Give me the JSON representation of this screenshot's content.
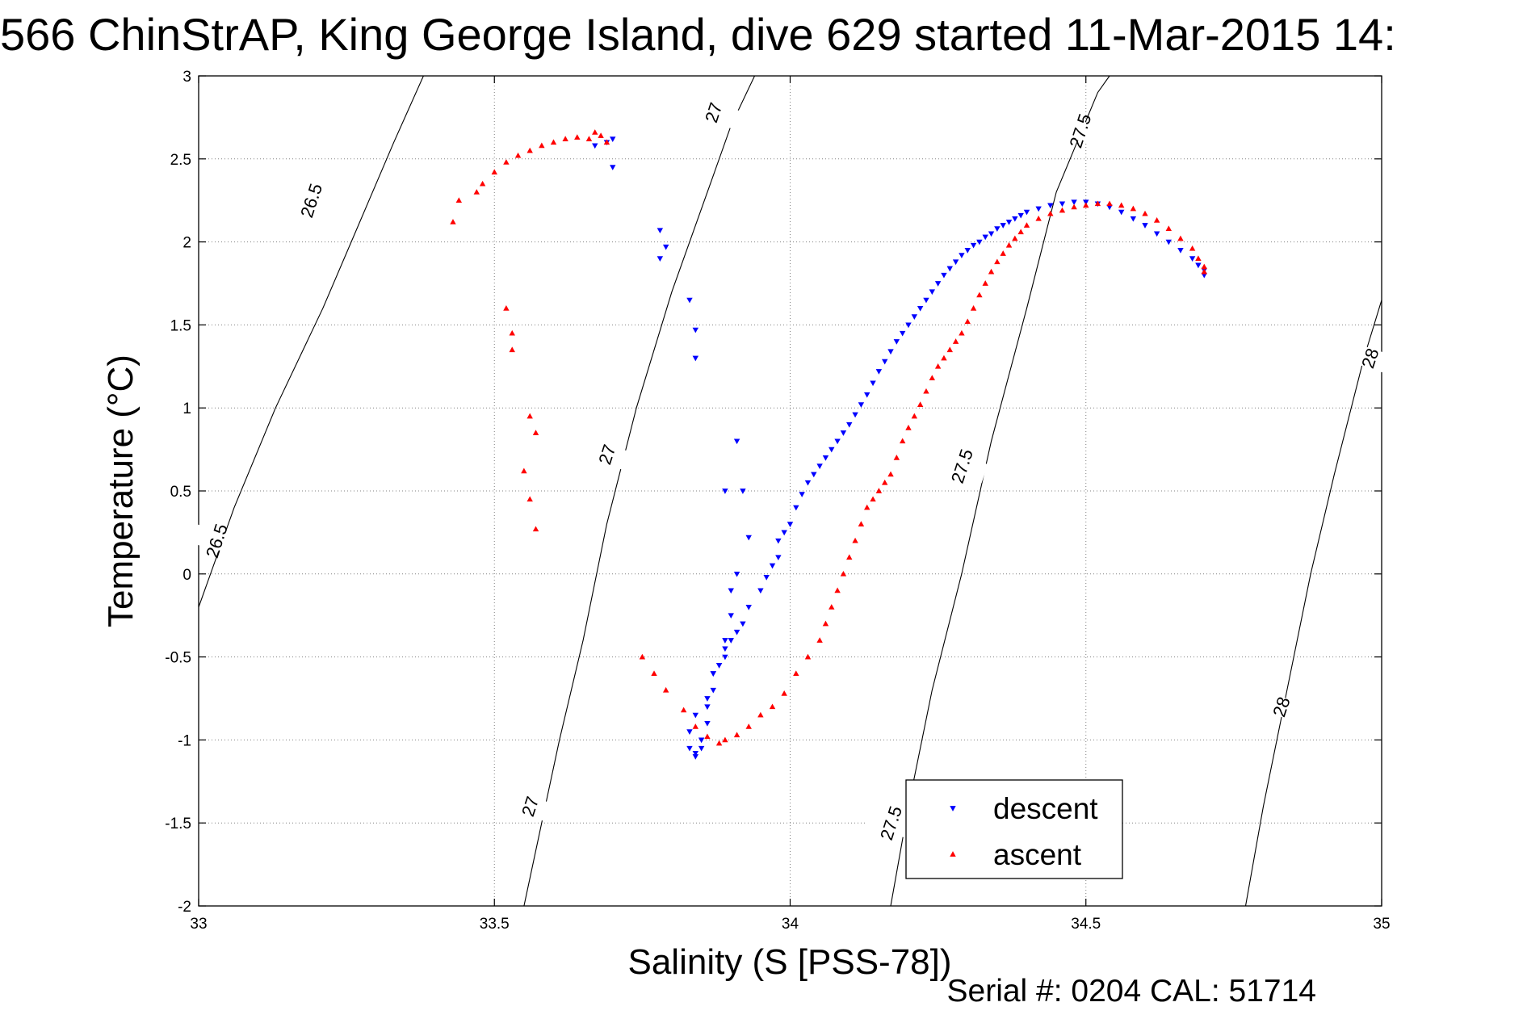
{
  "chart_data": {
    "type": "scatter",
    "title": "566 ChinStrAP, King George Island, dive 629 started 11-Mar-2015 14:",
    "xlabel": "Salinity (S [PSS-78])",
    "ylabel": "Temperature (°C)",
    "footer": "Serial #: 0204  CAL: 51714",
    "xlim": [
      33,
      35
    ],
    "ylim": [
      -2,
      3
    ],
    "xticks": [
      33,
      33.5,
      34,
      34.5,
      35
    ],
    "xtick_labels": [
      "33",
      "33.5",
      "34",
      "34.5",
      "35"
    ],
    "yticks": [
      -2,
      -1.5,
      -1,
      -0.5,
      0,
      0.5,
      1,
      1.5,
      2,
      2.5,
      3
    ],
    "ytick_labels": [
      "-2",
      "-1.5",
      "-1",
      "-0.5",
      "0",
      "0.5",
      "1",
      "1.5",
      "2",
      "2.5",
      "3"
    ],
    "grid": true,
    "legend_position": "bottom-right",
    "contours": [
      {
        "label": "26.5",
        "points": [
          [
            33.0,
            -0.2
          ],
          [
            33.06,
            0.4
          ],
          [
            33.13,
            1.0
          ],
          [
            33.21,
            1.6
          ],
          [
            33.27,
            2.1
          ],
          [
            33.33,
            2.6
          ],
          [
            33.38,
            3.0
          ]
        ],
        "label_positions": [
          [
            33.19,
            2.25
          ],
          [
            33.03,
            0.2
          ]
        ]
      },
      {
        "label": "27",
        "points": [
          [
            33.55,
            -2.0
          ],
          [
            33.58,
            -1.5
          ],
          [
            33.61,
            -1.0
          ],
          [
            33.65,
            -0.4
          ],
          [
            33.69,
            0.3
          ],
          [
            33.74,
            1.0
          ],
          [
            33.8,
            1.7
          ],
          [
            33.87,
            2.4
          ],
          [
            33.9,
            2.7
          ],
          [
            33.94,
            3.0
          ]
        ],
        "label_positions": [
          [
            33.87,
            2.78
          ],
          [
            33.69,
            0.72
          ],
          [
            33.56,
            -1.4
          ]
        ]
      },
      {
        "label": "27.5",
        "points": [
          [
            34.17,
            -2.0
          ],
          [
            34.2,
            -1.4
          ],
          [
            34.24,
            -0.7
          ],
          [
            34.29,
            0.0
          ],
          [
            34.34,
            0.8
          ],
          [
            34.4,
            1.6
          ],
          [
            34.45,
            2.3
          ],
          [
            34.52,
            2.9
          ],
          [
            34.54,
            3.0
          ]
        ],
        "label_positions": [
          [
            34.49,
            2.67
          ],
          [
            34.29,
            0.65
          ],
          [
            34.17,
            -1.5
          ]
        ]
      },
      {
        "label": "28",
        "points": [
          [
            34.77,
            -2.0
          ],
          [
            34.8,
            -1.4
          ],
          [
            34.84,
            -0.7
          ],
          [
            34.88,
            0.0
          ],
          [
            34.92,
            0.6
          ],
          [
            34.97,
            1.3
          ],
          [
            35.0,
            1.65
          ]
        ],
        "label_positions": [
          [
            34.98,
            1.3
          ],
          [
            34.83,
            -0.8
          ]
        ]
      }
    ],
    "series": [
      {
        "name": "descent",
        "color": "#0000ff",
        "marker": "triangle-down",
        "x": [
          33.7,
          33.69,
          33.67,
          33.7,
          33.78,
          33.79,
          33.78,
          33.83,
          33.84,
          33.84,
          33.91,
          33.92,
          33.89,
          33.93,
          33.91,
          33.9,
          33.9,
          33.89,
          33.88,
          33.87,
          33.87,
          33.86,
          33.86,
          33.85,
          33.85,
          33.84,
          33.84,
          33.83,
          33.83,
          33.84,
          33.86,
          33.87,
          33.88,
          33.89,
          33.89,
          33.9,
          33.91,
          33.92,
          33.93,
          33.95,
          33.96,
          33.97,
          33.98,
          33.98,
          33.99,
          34.0,
          34.01,
          34.02,
          34.03,
          34.04,
          34.05,
          34.06,
          34.07,
          34.08,
          34.09,
          34.1,
          34.11,
          34.12,
          34.13,
          34.14,
          34.15,
          34.16,
          34.17,
          34.18,
          34.19,
          34.2,
          34.21,
          34.22,
          34.23,
          34.24,
          34.25,
          34.26,
          34.27,
          34.28,
          34.29,
          34.3,
          34.31,
          34.32,
          34.33,
          34.34,
          34.35,
          34.36,
          34.37,
          34.38,
          34.39,
          34.4,
          34.42,
          34.44,
          34.46,
          34.48,
          34.5,
          34.52,
          34.54,
          34.56,
          34.58,
          34.6,
          34.62,
          34.64,
          34.66,
          34.68,
          34.69,
          34.7,
          34.7
        ],
        "y": [
          2.62,
          2.6,
          2.58,
          2.45,
          2.07,
          1.97,
          1.9,
          1.65,
          1.47,
          1.3,
          0.8,
          0.5,
          0.5,
          0.22,
          0.0,
          -0.1,
          -0.25,
          -0.4,
          -0.55,
          -0.6,
          -0.7,
          -0.8,
          -0.9,
          -1.0,
          -1.05,
          -1.08,
          -1.1,
          -1.05,
          -0.95,
          -0.85,
          -0.75,
          -0.6,
          -0.55,
          -0.5,
          -0.45,
          -0.4,
          -0.35,
          -0.3,
          -0.2,
          -0.1,
          -0.02,
          0.05,
          0.1,
          0.2,
          0.25,
          0.3,
          0.4,
          0.48,
          0.55,
          0.6,
          0.65,
          0.7,
          0.75,
          0.8,
          0.85,
          0.9,
          0.96,
          1.02,
          1.08,
          1.15,
          1.22,
          1.28,
          1.34,
          1.4,
          1.45,
          1.5,
          1.55,
          1.6,
          1.65,
          1.7,
          1.75,
          1.8,
          1.84,
          1.88,
          1.92,
          1.95,
          1.98,
          2.0,
          2.03,
          2.05,
          2.08,
          2.1,
          2.12,
          2.14,
          2.16,
          2.18,
          2.2,
          2.22,
          2.23,
          2.24,
          2.24,
          2.23,
          2.21,
          2.18,
          2.14,
          2.1,
          2.05,
          2.0,
          1.95,
          1.9,
          1.86,
          1.83,
          1.8
        ]
      },
      {
        "name": "ascent",
        "color": "#ff0000",
        "marker": "triangle-up",
        "x": [
          33.43,
          33.44,
          33.47,
          33.48,
          33.5,
          33.52,
          33.54,
          33.56,
          33.58,
          33.6,
          33.62,
          33.64,
          33.66,
          33.67,
          33.68,
          33.69,
          33.52,
          33.53,
          33.53,
          33.56,
          33.57,
          33.55,
          33.56,
          33.57,
          33.75,
          33.77,
          33.79,
          33.82,
          33.84,
          33.86,
          33.88,
          33.89,
          33.91,
          33.93,
          33.95,
          33.97,
          33.99,
          34.01,
          34.03,
          34.05,
          34.06,
          34.07,
          34.08,
          34.09,
          34.1,
          34.11,
          34.12,
          34.13,
          34.14,
          34.15,
          34.16,
          34.17,
          34.18,
          34.19,
          34.2,
          34.21,
          34.22,
          34.23,
          34.24,
          34.25,
          34.26,
          34.27,
          34.28,
          34.29,
          34.3,
          34.31,
          34.32,
          34.33,
          34.34,
          34.35,
          34.36,
          34.37,
          34.38,
          34.39,
          34.4,
          34.42,
          34.44,
          34.46,
          34.48,
          34.5,
          34.52,
          34.54,
          34.56,
          34.58,
          34.6,
          34.62,
          34.64,
          34.66,
          34.68,
          34.69,
          34.7,
          34.7
        ],
        "y": [
          2.12,
          2.25,
          2.3,
          2.35,
          2.42,
          2.48,
          2.52,
          2.55,
          2.58,
          2.6,
          2.62,
          2.63,
          2.62,
          2.66,
          2.64,
          2.6,
          1.6,
          1.45,
          1.35,
          0.95,
          0.85,
          0.62,
          0.45,
          0.27,
          -0.5,
          -0.6,
          -0.7,
          -0.82,
          -0.92,
          -0.98,
          -1.02,
          -1.0,
          -0.97,
          -0.92,
          -0.85,
          -0.8,
          -0.72,
          -0.6,
          -0.5,
          -0.4,
          -0.3,
          -0.2,
          -0.1,
          0.0,
          0.1,
          0.2,
          0.3,
          0.4,
          0.45,
          0.5,
          0.55,
          0.6,
          0.7,
          0.8,
          0.88,
          0.95,
          1.02,
          1.1,
          1.18,
          1.25,
          1.3,
          1.35,
          1.4,
          1.45,
          1.52,
          1.6,
          1.68,
          1.75,
          1.82,
          1.88,
          1.93,
          1.98,
          2.02,
          2.06,
          2.1,
          2.14,
          2.17,
          2.19,
          2.21,
          2.22,
          2.23,
          2.23,
          2.22,
          2.2,
          2.17,
          2.13,
          2.08,
          2.02,
          1.96,
          1.9,
          1.85,
          1.82
        ]
      }
    ]
  }
}
